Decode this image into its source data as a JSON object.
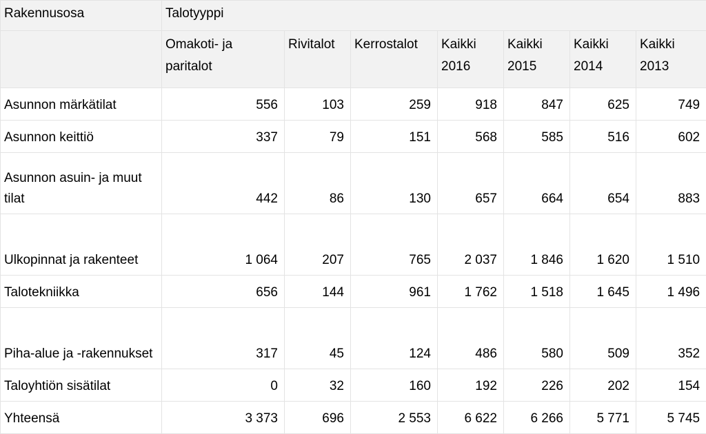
{
  "table": {
    "corner_header": "Rakennusosa",
    "group_header": "Talotyyppi",
    "columns": [
      "Omakoti- ja paritalot",
      "Rivitalot",
      "Kerrostalot",
      "Kaikki 2016",
      "Kaikki 2015",
      "Kaikki 2014",
      "Kaikki 2013"
    ],
    "rows": [
      {
        "label": "Asunnon märkätilat",
        "values": [
          "556",
          "103",
          "259",
          "918",
          "847",
          "625",
          "749"
        ]
      },
      {
        "label": "Asunnon keittiö",
        "values": [
          "337",
          "79",
          "151",
          "568",
          "585",
          "516",
          "602"
        ]
      },
      {
        "label": "Asunnon asuin- ja muut tilat",
        "values": [
          "442",
          "86",
          "130",
          "657",
          "664",
          "654",
          "883"
        ]
      },
      {
        "label": "Ulkopinnat ja rakenteet",
        "values": [
          "1 064",
          "207",
          "765",
          "2 037",
          "1 846",
          "1 620",
          "1 510"
        ]
      },
      {
        "label": "Talotekniikka",
        "values": [
          "656",
          "144",
          "961",
          "1 762",
          "1 518",
          "1 645",
          "1 496"
        ]
      },
      {
        "label": "Piha-alue ja -rakennukset",
        "values": [
          "317",
          "45",
          "124",
          "486",
          "580",
          "509",
          "352"
        ]
      },
      {
        "label": "Taloyhtiön sisätilat",
        "values": [
          "0",
          "32",
          "160",
          "192",
          "226",
          "202",
          "154"
        ]
      },
      {
        "label": "Yhteensä",
        "values": [
          "3 373",
          "696",
          "2 553",
          "6 622",
          "6 266",
          "5 771",
          "5 745"
        ]
      }
    ]
  }
}
